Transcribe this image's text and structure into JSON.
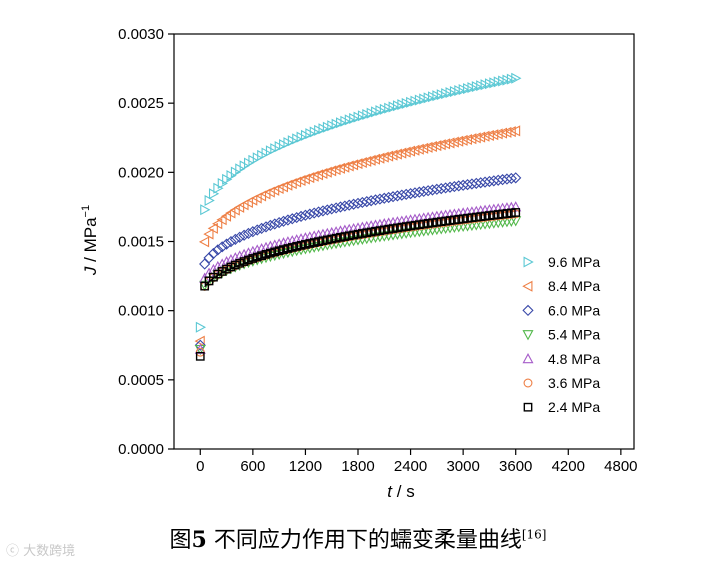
{
  "figure": {
    "caption_prefix": "图",
    "caption_number": "5",
    "caption_text": " 不同应力作用下的蠕变柔量曲线",
    "caption_ref": "[16]",
    "watermark": "大数跨境"
  },
  "chart_data": {
    "type": "scatter",
    "title": "",
    "xlabel_var": "t",
    "xlabel_unit": " / s",
    "ylabel_var": "J",
    "ylabel_unit": " / MPa",
    "ylabel_exp": "−1",
    "xlim": [
      -300,
      4950
    ],
    "ylim": [
      0,
      0.003
    ],
    "xticks": [
      0,
      600,
      1200,
      1800,
      2400,
      3000,
      3600,
      4200,
      4800
    ],
    "xtick_labels": [
      "0",
      "600",
      "1200",
      "1800",
      "2400",
      "3000",
      "3600",
      "4200",
      "4800"
    ],
    "yticks": [
      0,
      0.0005,
      0.001,
      0.0015,
      0.002,
      0.0025,
      0.003
    ],
    "ytick_labels": [
      "0.0000",
      "0.0005",
      "0.0010",
      "0.0015",
      "0.0020",
      "0.0025",
      "0.0030"
    ],
    "grid": false,
    "legend_position": "right-lower",
    "x_sampling": {
      "start": 0,
      "end": 3600,
      "step": 50
    },
    "series": [
      {
        "name": "9.6 MPa",
        "marker": "triangle-right",
        "color": "#5bc8d4",
        "first_y": 0.00088,
        "j0": 0.00152,
        "j3600": 0.00268
      },
      {
        "name": "8.4 MPa",
        "marker": "triangle-left",
        "color": "#ee7f45",
        "first_y": 0.00078,
        "j0": 0.00132,
        "j3600": 0.0023
      },
      {
        "name": "6.0 MPa",
        "marker": "diamond",
        "color": "#3848a8",
        "first_y": 0.00075,
        "j0": 0.0012,
        "j3600": 0.00196
      },
      {
        "name": "5.4 MPa",
        "marker": "triangle-down",
        "color": "#52b84a",
        "first_y": 0.00072,
        "j0": 0.00108,
        "j3600": 0.00165
      },
      {
        "name": "4.8 MPa",
        "marker": "triangle-up",
        "color": "#a65cc9",
        "first_y": 0.00072,
        "j0": 0.00112,
        "j3600": 0.00175
      },
      {
        "name": "3.6 MPa",
        "marker": "circle",
        "color": "#ee7f45",
        "first_y": 0.0007,
        "j0": 0.00106,
        "j3600": 0.0017
      },
      {
        "name": "2.4 MPa",
        "marker": "square",
        "color": "#000000",
        "first_y": 0.00067,
        "j0": 0.00106,
        "j3600": 0.00171
      }
    ],
    "fit_curve": {
      "color": "#000000",
      "j0": 0.00106,
      "j3600": 0.00168
    }
  }
}
